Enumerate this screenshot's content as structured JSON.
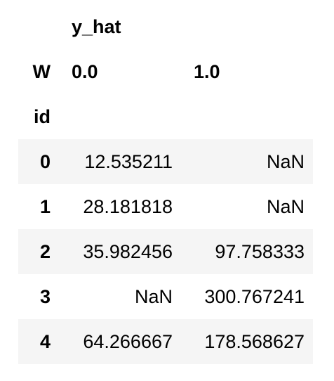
{
  "table": {
    "column_level_0": {
      "name": "",
      "label": "y_hat"
    },
    "column_level_1": {
      "name": "W",
      "values": [
        "0.0",
        "1.0"
      ]
    },
    "index_name": "id",
    "rows": [
      {
        "index": "0",
        "values": [
          "12.535211",
          "NaN"
        ]
      },
      {
        "index": "1",
        "values": [
          "28.181818",
          "NaN"
        ]
      },
      {
        "index": "2",
        "values": [
          "35.982456",
          "97.758333"
        ]
      },
      {
        "index": "3",
        "values": [
          "NaN",
          "300.767241"
        ]
      },
      {
        "index": "4",
        "values": [
          "64.266667",
          "178.568627"
        ]
      }
    ]
  }
}
